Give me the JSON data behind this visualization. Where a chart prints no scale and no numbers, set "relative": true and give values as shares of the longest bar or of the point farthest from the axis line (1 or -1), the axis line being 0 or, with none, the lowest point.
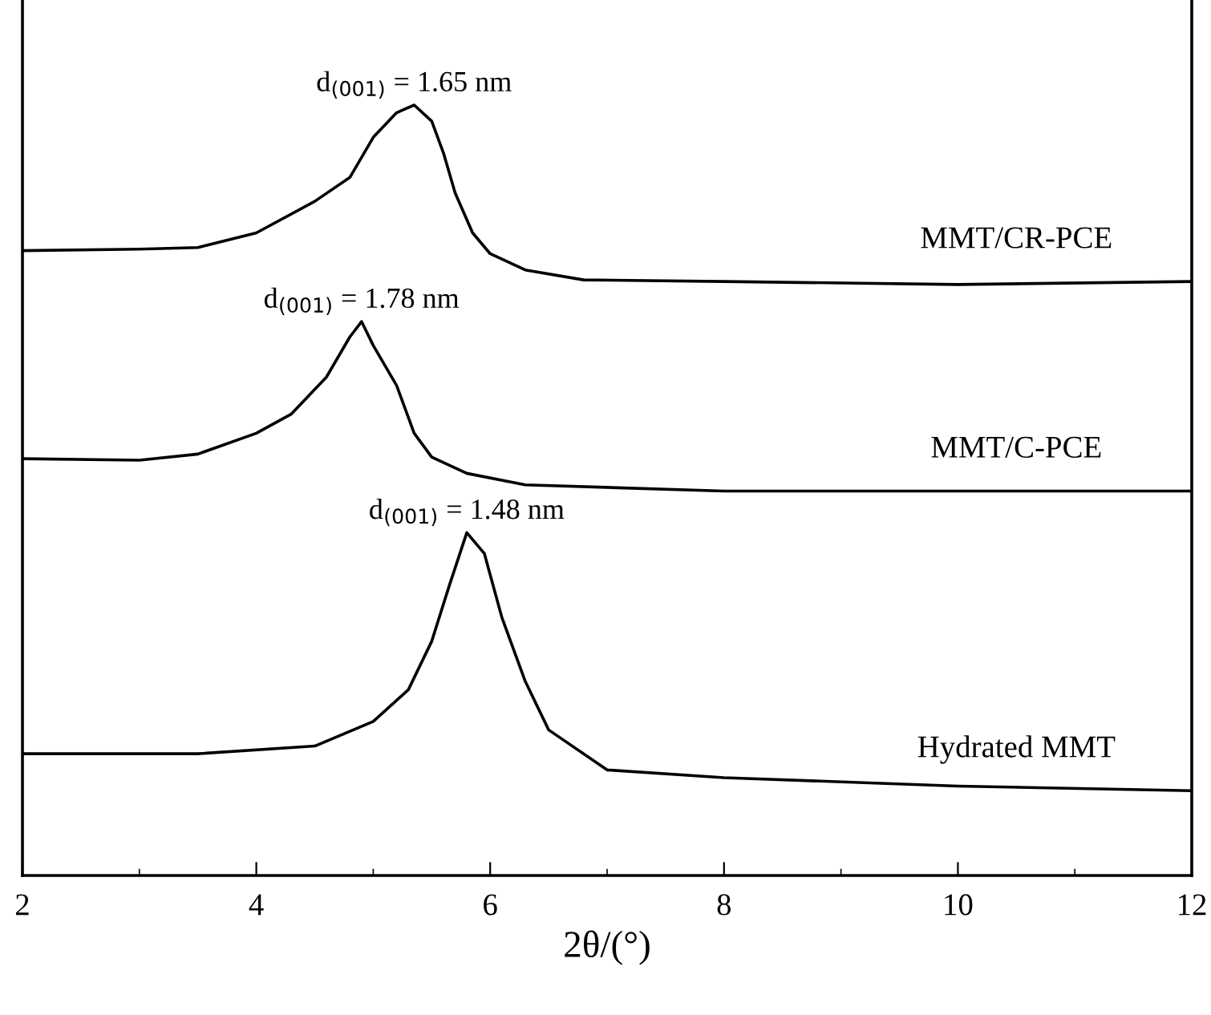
{
  "chart_data": {
    "type": "line",
    "relative": true,
    "xlabel": "2θ/(°)",
    "xlim": [
      2,
      12
    ],
    "xticks": [
      2,
      4,
      6,
      8,
      10,
      12
    ],
    "grid": false,
    "legend": false,
    "marker": "none",
    "line_style": "solid",
    "annotations": [
      "d$_{(001)}$ = 1.65 nm",
      "d$_{(001)}$ = 1.78 nm",
      "d$_{(001)}$ = 1.48 nm"
    ],
    "series": [
      {
        "name": "MMT/CR-PCE",
        "color": "#000000",
        "x": [
          2,
          3,
          3.5,
          4,
          4.5,
          4.8,
          5.0,
          5.2,
          5.35,
          5.5,
          5.6,
          5.7,
          5.85,
          6.0,
          6.3,
          6.8,
          8,
          10,
          12
        ],
        "values": [
          0.811,
          0.813,
          0.815,
          0.834,
          0.875,
          0.906,
          0.958,
          0.99,
          1,
          0.979,
          0.938,
          0.886,
          0.834,
          0.807,
          0.786,
          0.773,
          0.771,
          0.767,
          0.771
        ]
      },
      {
        "name": "MMT/C-PCE",
        "color": "#000000",
        "x": [
          2,
          3,
          3.5,
          4,
          4.3,
          4.6,
          4.8,
          4.9,
          5.0,
          5.2,
          5.35,
          5.5,
          5.8,
          6.3,
          8,
          10,
          12
        ],
        "values": [
          0.541,
          0.539,
          0.547,
          0.574,
          0.599,
          0.647,
          0.699,
          0.719,
          0.688,
          0.636,
          0.574,
          0.543,
          0.522,
          0.507,
          0.499,
          0.499,
          0.499
        ]
      },
      {
        "name": "Hydrated MMT",
        "color": "#000000",
        "x": [
          2,
          3.5,
          4.5,
          5,
          5.3,
          5.5,
          5.65,
          5.8,
          5.95,
          6.1,
          6.3,
          6.5,
          7,
          8,
          10,
          12
        ],
        "values": [
          0.158,
          0.158,
          0.168,
          0.2,
          0.241,
          0.304,
          0.376,
          0.445,
          0.418,
          0.335,
          0.252,
          0.189,
          0.137,
          0.127,
          0.116,
          0.11
        ]
      }
    ]
  }
}
